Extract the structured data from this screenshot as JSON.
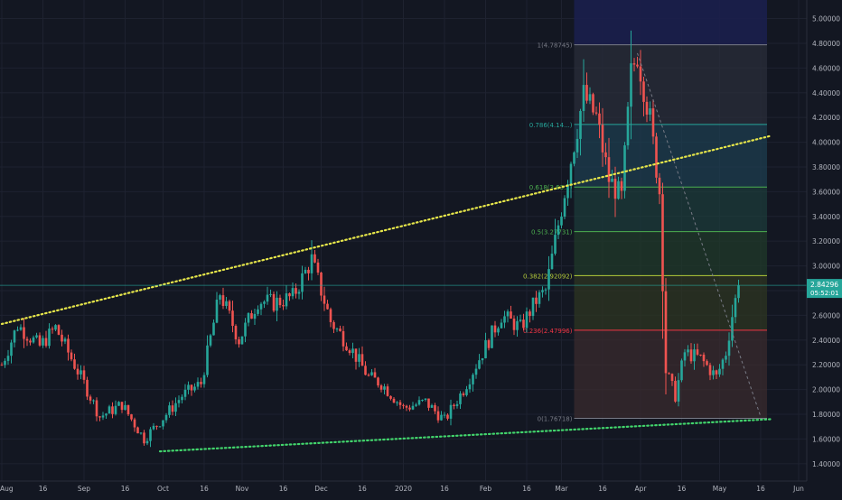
{
  "chart_data": {
    "type": "candlestick",
    "title": "",
    "xlabel": "",
    "ylabel": "",
    "ylim": [
      1.26,
      5.15
    ],
    "grid": true,
    "y_ticks": [
      "5.00000",
      "4.80000",
      "4.60000",
      "4.40000",
      "4.20000",
      "4.00000",
      "3.80000",
      "3.60000",
      "3.40000",
      "3.20000",
      "3.00000",
      "2.80000",
      "2.60000",
      "2.40000",
      "2.20000",
      "2.00000",
      "1.80000",
      "1.60000",
      "1.40000"
    ],
    "x_ticks": [
      "Aug",
      "16",
      "Sep",
      "16",
      "Oct",
      "16",
      "Nov",
      "16",
      "Dec",
      "16",
      "2020",
      "16",
      "Feb",
      "16",
      "Mar",
      "16",
      "Apr",
      "16",
      "May",
      "16",
      "Jun"
    ],
    "price_label": "2.84296",
    "countdown_label": "05:52:01",
    "last_price": 2.84296,
    "fib_levels": [
      {
        "label": "1(4.78745)",
        "value": 4.78745,
        "color": "#787b86"
      },
      {
        "label": "0.786(4.14...)",
        "value": 4.1441,
        "color": "#26a69a"
      },
      {
        "label": "0.618(3.63...)",
        "value": 3.6378,
        "color": "#4caf50"
      },
      {
        "label": "0.5(3.27731)",
        "value": 3.27731,
        "color": "#4caf50"
      },
      {
        "label": "0.382(2.92092)",
        "value": 2.92092,
        "color": "#b5cc3a"
      },
      {
        "label": "0.236(2.47996)",
        "value": 2.47996,
        "color": "#f23645"
      },
      {
        "label": "0(1.76718)",
        "value": 1.76718,
        "color": "#787b86"
      }
    ],
    "fib_top_value": 5.15,
    "trendlines": [
      {
        "name": "upper",
        "color": "#e6e64a",
        "from": [
          0,
          2.53
        ],
        "to": [
          243,
          4.05
        ]
      },
      {
        "name": "lower",
        "color": "#42d56c",
        "from": [
          50,
          1.5
        ],
        "to": [
          243,
          1.76
        ]
      },
      {
        "name": "projection",
        "color": "#787b86",
        "from": [
          201,
          4.72
        ],
        "to": [
          240,
          1.78
        ]
      }
    ],
    "waypoints": [
      [
        0,
        2.2
      ],
      [
        5,
        2.52
      ],
      [
        12,
        2.35
      ],
      [
        17,
        2.5
      ],
      [
        26,
        2.05
      ],
      [
        31,
        1.78
      ],
      [
        38,
        1.88
      ],
      [
        45,
        1.6
      ],
      [
        52,
        1.8
      ],
      [
        57,
        1.95
      ],
      [
        63,
        2.05
      ],
      [
        69,
        2.78
      ],
      [
        75,
        2.4
      ],
      [
        81,
        2.72
      ],
      [
        86,
        2.7
      ],
      [
        92,
        2.75
      ],
      [
        98,
        3.05
      ],
      [
        104,
        2.55
      ],
      [
        110,
        2.35
      ],
      [
        116,
        2.1
      ],
      [
        120,
        2.05
      ],
      [
        127,
        1.85
      ],
      [
        134,
        1.9
      ],
      [
        140,
        1.75
      ],
      [
        146,
        2.0
      ],
      [
        152,
        2.3
      ],
      [
        158,
        2.6
      ],
      [
        164,
        2.5
      ],
      [
        169,
        2.72
      ],
      [
        172,
        2.8
      ],
      [
        178,
        3.6
      ],
      [
        184,
        4.38
      ],
      [
        188,
        4.2
      ],
      [
        192,
        3.7
      ],
      [
        196,
        3.55
      ],
      [
        199,
        4.55
      ],
      [
        201,
        4.72
      ],
      [
        205,
        4.18
      ],
      [
        208,
        3.6
      ],
      [
        210,
        2.15
      ],
      [
        213,
        1.95
      ],
      [
        216,
        2.3
      ],
      [
        221,
        2.25
      ],
      [
        226,
        2.1
      ],
      [
        229,
        2.3
      ],
      [
        231,
        2.6
      ],
      [
        233,
        2.84296
      ]
    ]
  }
}
